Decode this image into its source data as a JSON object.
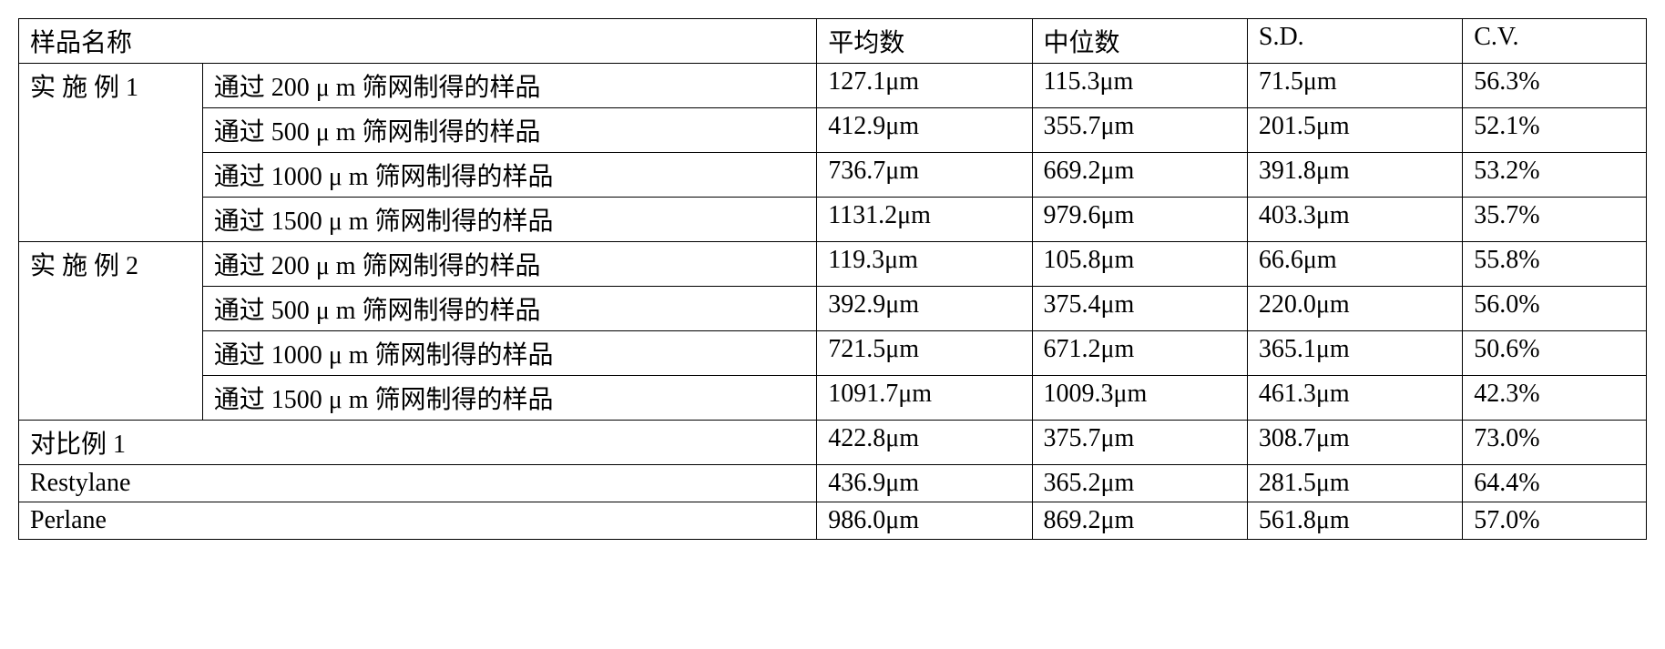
{
  "header": {
    "name": "样品名称",
    "mean": "平均数",
    "median": "中位数",
    "sd": "S.D.",
    "cv": "C.V."
  },
  "groups": [
    {
      "label": "实 施 例 1",
      "rows": [
        {
          "desc": "通过 200 μ m 筛网制得的样品",
          "mean": "127.1μm",
          "median": "115.3μm",
          "sd": "71.5μm",
          "cv": "56.3%"
        },
        {
          "desc": "通过 500 μ m 筛网制得的样品",
          "mean": "412.9μm",
          "median": "355.7μm",
          "sd": "201.5μm",
          "cv": "52.1%"
        },
        {
          "desc": "通过 1000 μ m 筛网制得的样品",
          "mean": "736.7μm",
          "median": "669.2μm",
          "sd": "391.8μm",
          "cv": "53.2%"
        },
        {
          "desc": "通过 1500 μ m 筛网制得的样品",
          "mean": "1131.2μm",
          "median": "979.6μm",
          "sd": "403.3μm",
          "cv": "35.7%"
        }
      ]
    },
    {
      "label": "实 施 例 2",
      "rows": [
        {
          "desc": "通过 200 μ m 筛网制得的样品",
          "mean": "119.3μm",
          "median": "105.8μm",
          "sd": "66.6μm",
          "cv": "55.8%"
        },
        {
          "desc": "通过 500 μ m 筛网制得的样品",
          "mean": "392.9μm",
          "median": "375.4μm",
          "sd": "220.0μm",
          "cv": "56.0%"
        },
        {
          "desc": "通过 1000 μ m 筛网制得的样品",
          "mean": "721.5μm",
          "median": "671.2μm",
          "sd": "365.1μm",
          "cv": "50.6%"
        },
        {
          "desc": "通过 1500 μ m 筛网制得的样品",
          "mean": "1091.7μm",
          "median": "1009.3μm",
          "sd": "461.3μm",
          "cv": "42.3%"
        }
      ]
    }
  ],
  "single_rows": [
    {
      "label": "对比例 1",
      "mean": "422.8μm",
      "median": "375.7μm",
      "sd": "308.7μm",
      "cv": "73.0%"
    },
    {
      "label": "Restylane",
      "mean": "436.9μm",
      "median": "365.2μm",
      "sd": "281.5μm",
      "cv": "64.4%"
    },
    {
      "label": "Perlane",
      "mean": "986.0μm",
      "median": "869.2μm",
      "sd": "561.8μm",
      "cv": "57.0%"
    }
  ]
}
